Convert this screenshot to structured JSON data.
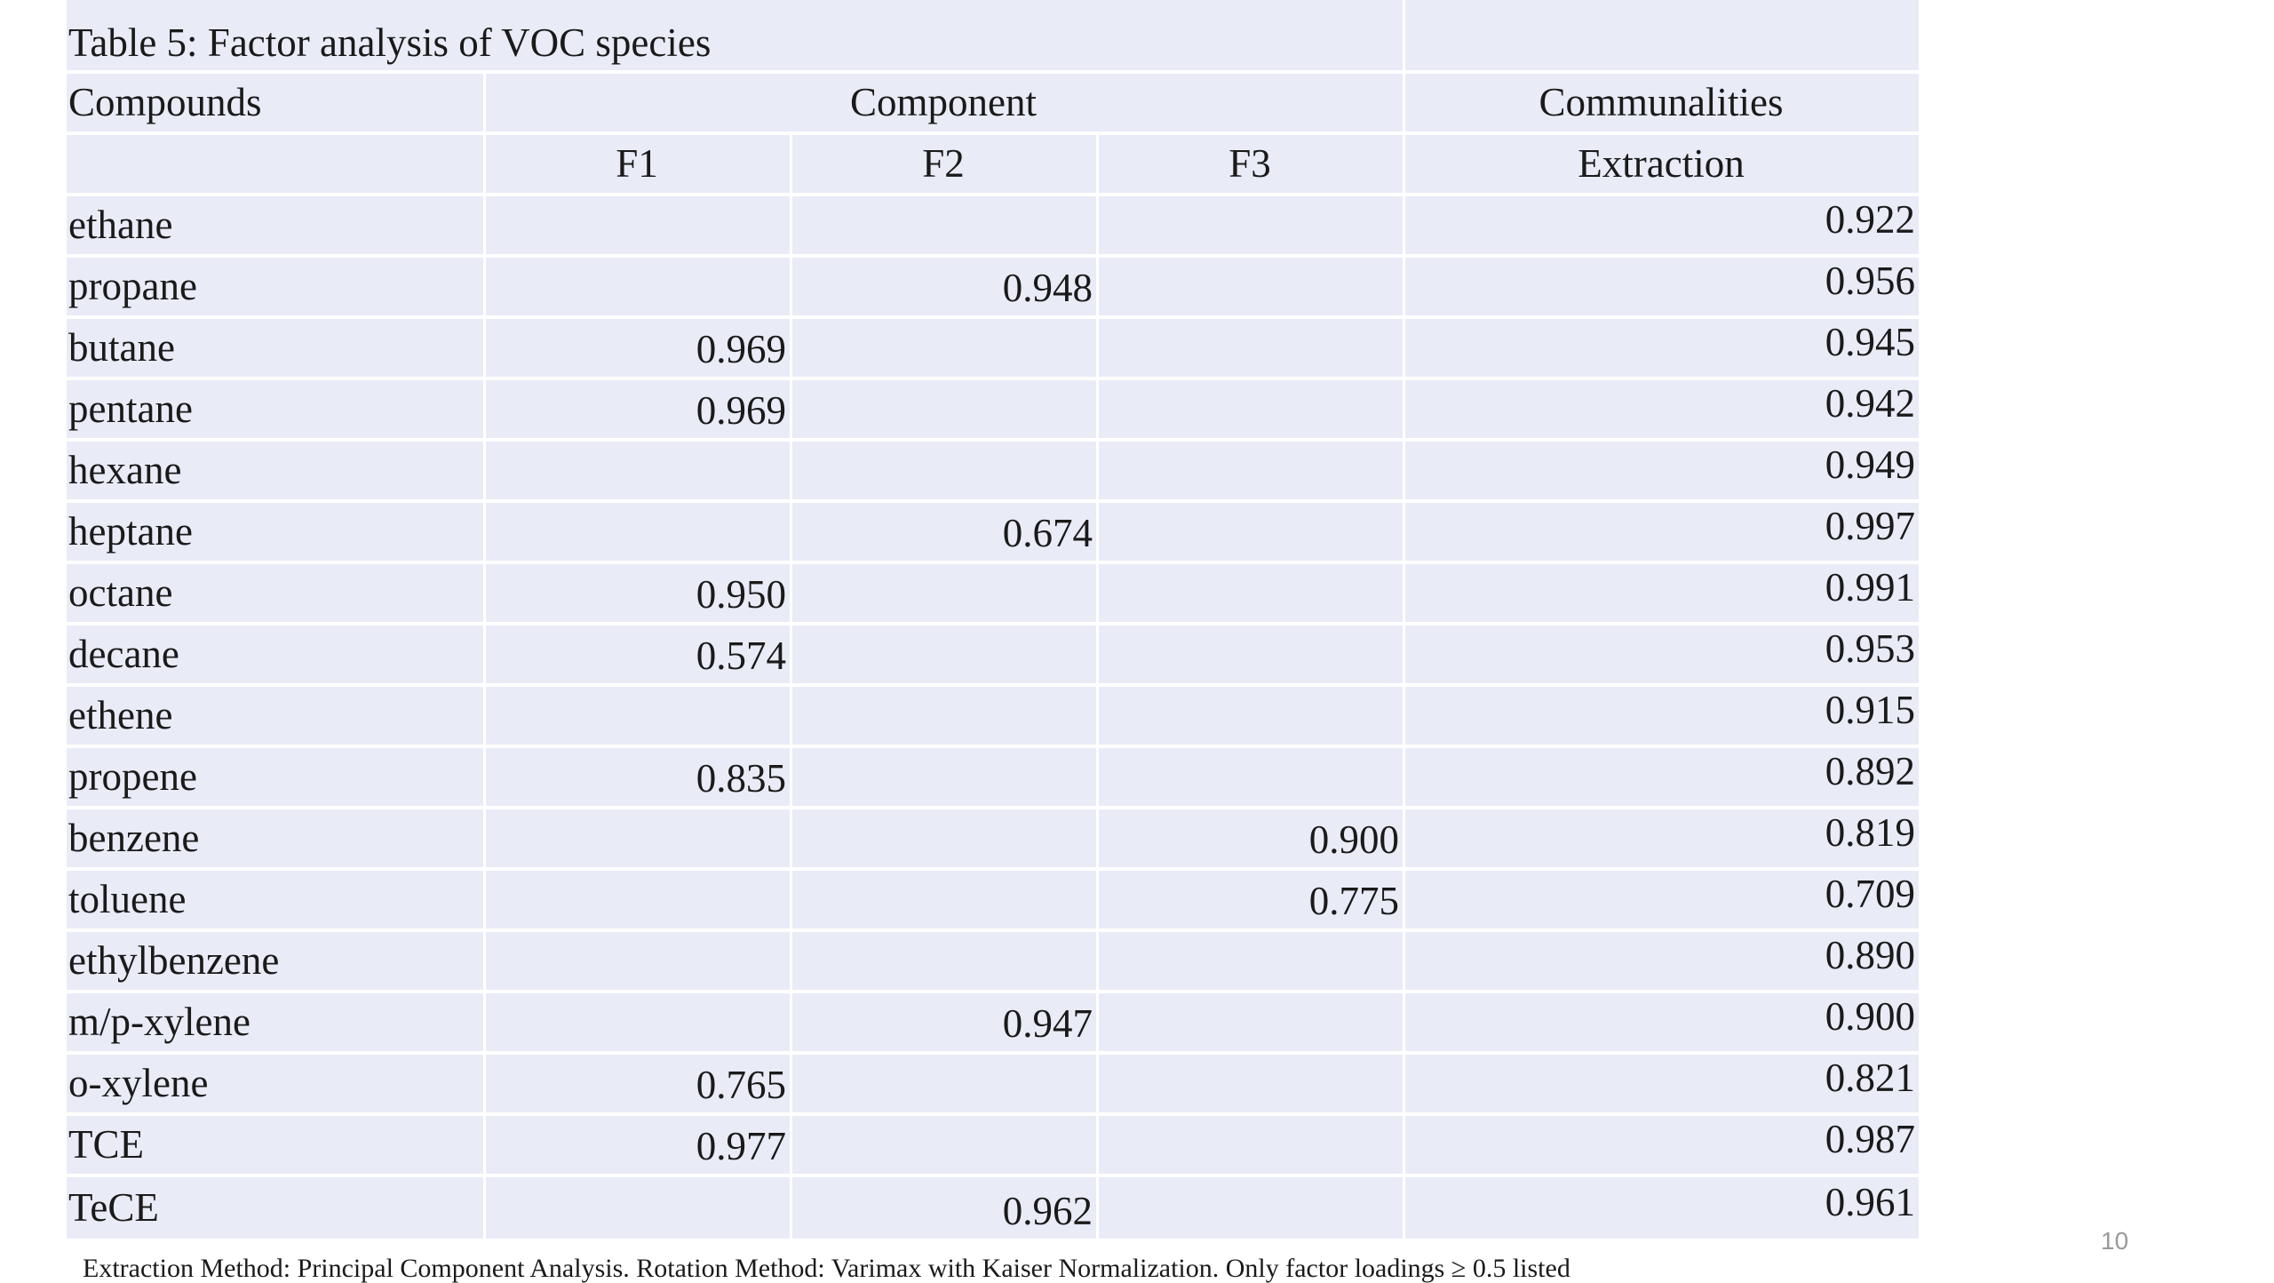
{
  "table": {
    "caption": "Table 5: Factor analysis of VOC species",
    "headers": {
      "compounds": "Compounds",
      "component": "Component",
      "communalities": "Communalities",
      "f1": "F1",
      "f2": "F2",
      "f3": "F3",
      "extraction": "Extraction"
    },
    "rows": [
      {
        "name": "ethane",
        "f1": "",
        "f2": "",
        "f3": "",
        "extraction": "0.922"
      },
      {
        "name": "propane",
        "f1": "",
        "f2": "0.948",
        "f3": "",
        "extraction": "0.956"
      },
      {
        "name": "butane",
        "f1": "0.969",
        "f2": "",
        "f3": "",
        "extraction": "0.945"
      },
      {
        "name": "pentane",
        "f1": "0.969",
        "f2": "",
        "f3": "",
        "extraction": "0.942"
      },
      {
        "name": "hexane",
        "f1": "",
        "f2": "",
        "f3": "",
        "extraction": "0.949"
      },
      {
        "name": "heptane",
        "f1": "",
        "f2": "0.674",
        "f3": "",
        "extraction": "0.997"
      },
      {
        "name": "octane",
        "f1": "0.950",
        "f2": "",
        "f3": "",
        "extraction": "0.991"
      },
      {
        "name": "decane",
        "f1": "0.574",
        "f2": "",
        "f3": "",
        "extraction": "0.953"
      },
      {
        "name": "ethene",
        "f1": "",
        "f2": "",
        "f3": "",
        "extraction": "0.915"
      },
      {
        "name": "propene",
        "f1": "0.835",
        "f2": "",
        "f3": "",
        "extraction": "0.892"
      },
      {
        "name": "benzene",
        "f1": "",
        "f2": "",
        "f3": "0.900",
        "extraction": "0.819"
      },
      {
        "name": "toluene",
        "f1": "",
        "f2": "",
        "f3": "0.775",
        "extraction": "0.709"
      },
      {
        "name": "ethylbenzene",
        "f1": "",
        "f2": "",
        "f3": "",
        "extraction": "0.890"
      },
      {
        "name": "m/p-xylene",
        "f1": "",
        "f2": "0.947",
        "f3": "",
        "extraction": "0.900"
      },
      {
        "name": "o-xylene",
        "f1": "0.765",
        "f2": "",
        "f3": "",
        "extraction": "0.821"
      },
      {
        "name": "TCE",
        "f1": "0.977",
        "f2": "",
        "f3": "",
        "extraction": "0.987"
      },
      {
        "name": "TeCE",
        "f1": "",
        "f2": "0.962",
        "f3": "",
        "extraction": "0.961"
      }
    ]
  },
  "footnote": "Extraction Method: Principal Component Analysis.  Rotation Method: Varimax with Kaiser Normalization. Only factor loadings ≥ 0.5 listed",
  "page_number": "10",
  "colors": {
    "cell_background": "#e9ecf7",
    "text": "#1a1a1a",
    "page_number": "#9a9a9a"
  }
}
